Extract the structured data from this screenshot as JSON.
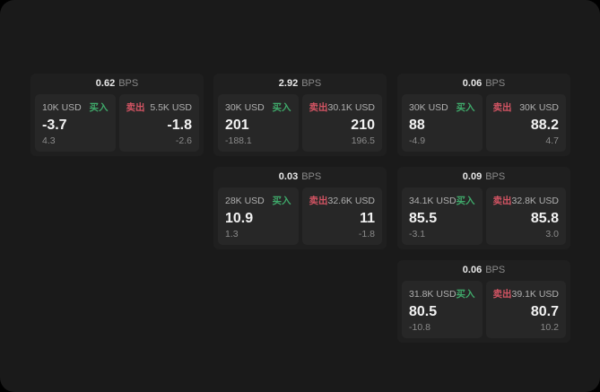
{
  "labels": {
    "buy": "买入",
    "sell": "卖出",
    "bps_unit": "BPS"
  },
  "colors": {
    "background": "#000000",
    "window": "#1a1a1a",
    "card": "#1f1f1f",
    "panel": "#272727",
    "buy_green": "#3fa96a",
    "sell_red": "#d25463"
  },
  "cards": [
    {
      "bps": "0.62",
      "buy": {
        "notional": "10K USD",
        "price": "-3.7",
        "change": "4.3"
      },
      "sell": {
        "notional": "5.5K USD",
        "price": "-1.8",
        "change": "-2.6"
      }
    },
    {
      "bps": "2.92",
      "buy": {
        "notional": "30K USD",
        "price": "201",
        "change": "-188.1"
      },
      "sell": {
        "notional": "30.1K USD",
        "price": "210",
        "change": "196.5"
      }
    },
    {
      "bps": "0.06",
      "buy": {
        "notional": "30K USD",
        "price": "88",
        "change": "-4.9"
      },
      "sell": {
        "notional": "30K USD",
        "price": "88.2",
        "change": "4.7"
      }
    },
    {
      "bps": "0.03",
      "buy": {
        "notional": "28K USD",
        "price": "10.9",
        "change": "1.3"
      },
      "sell": {
        "notional": "32.6K USD",
        "price": "11",
        "change": "-1.8"
      }
    },
    {
      "bps": "0.09",
      "buy": {
        "notional": "34.1K USD",
        "price": "85.5",
        "change": "-3.1"
      },
      "sell": {
        "notional": "32.8K USD",
        "price": "85.8",
        "change": "3.0"
      }
    },
    {
      "bps": "0.06",
      "buy": {
        "notional": "31.8K USD",
        "price": "80.5",
        "change": "-10.8"
      },
      "sell": {
        "notional": "39.1K USD",
        "price": "80.7",
        "change": "10.2"
      }
    }
  ]
}
